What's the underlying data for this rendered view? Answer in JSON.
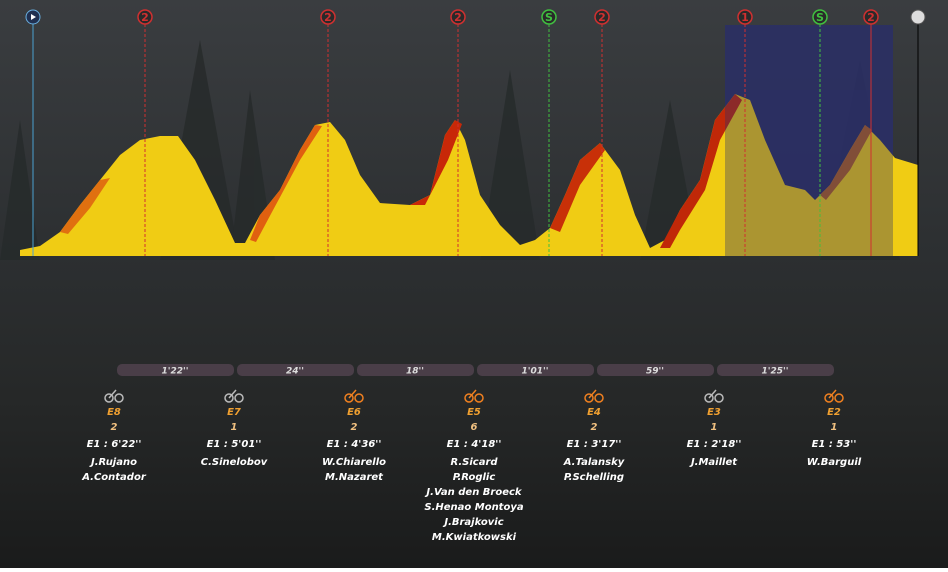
{
  "markers": [
    "2",
    "2",
    "2",
    "S",
    "2",
    "1",
    "S",
    "2"
  ],
  "gaps": [
    "1'22''",
    "24''",
    "18''",
    "1'01''",
    "59''",
    "1'25''"
  ],
  "groups": [
    {
      "id": "E8",
      "count": "2",
      "time": "E1 : 6'22''",
      "riders": [
        "J.Rujano",
        "A.Contador"
      ]
    },
    {
      "id": "E7",
      "count": "1",
      "time": "E1 : 5'01''",
      "riders": [
        "C.Sinelobov"
      ]
    },
    {
      "id": "E6",
      "count": "2",
      "time": "E1 : 4'36''",
      "riders": [
        "W.Chiarello",
        "M.Nazaret"
      ]
    },
    {
      "id": "E5",
      "count": "6",
      "time": "E1 : 4'18''",
      "riders": [
        "R.Sicard",
        "P.Roglic",
        "J.Van den Broeck",
        "S.Henao Montoya",
        "J.Brajkovic",
        "M.Kwiatkowski"
      ]
    },
    {
      "id": "E4",
      "count": "2",
      "time": "E1 : 3'17''",
      "riders": [
        "A.Talansky",
        "P.Schelling"
      ]
    },
    {
      "id": "E3",
      "count": "1",
      "time": "E1 : 2'18''",
      "riders": [
        "J.Maillet"
      ]
    },
    {
      "id": "E2",
      "count": "1",
      "time": "E1 : 53''",
      "riders": [
        "W.Barguil"
      ]
    }
  ]
}
